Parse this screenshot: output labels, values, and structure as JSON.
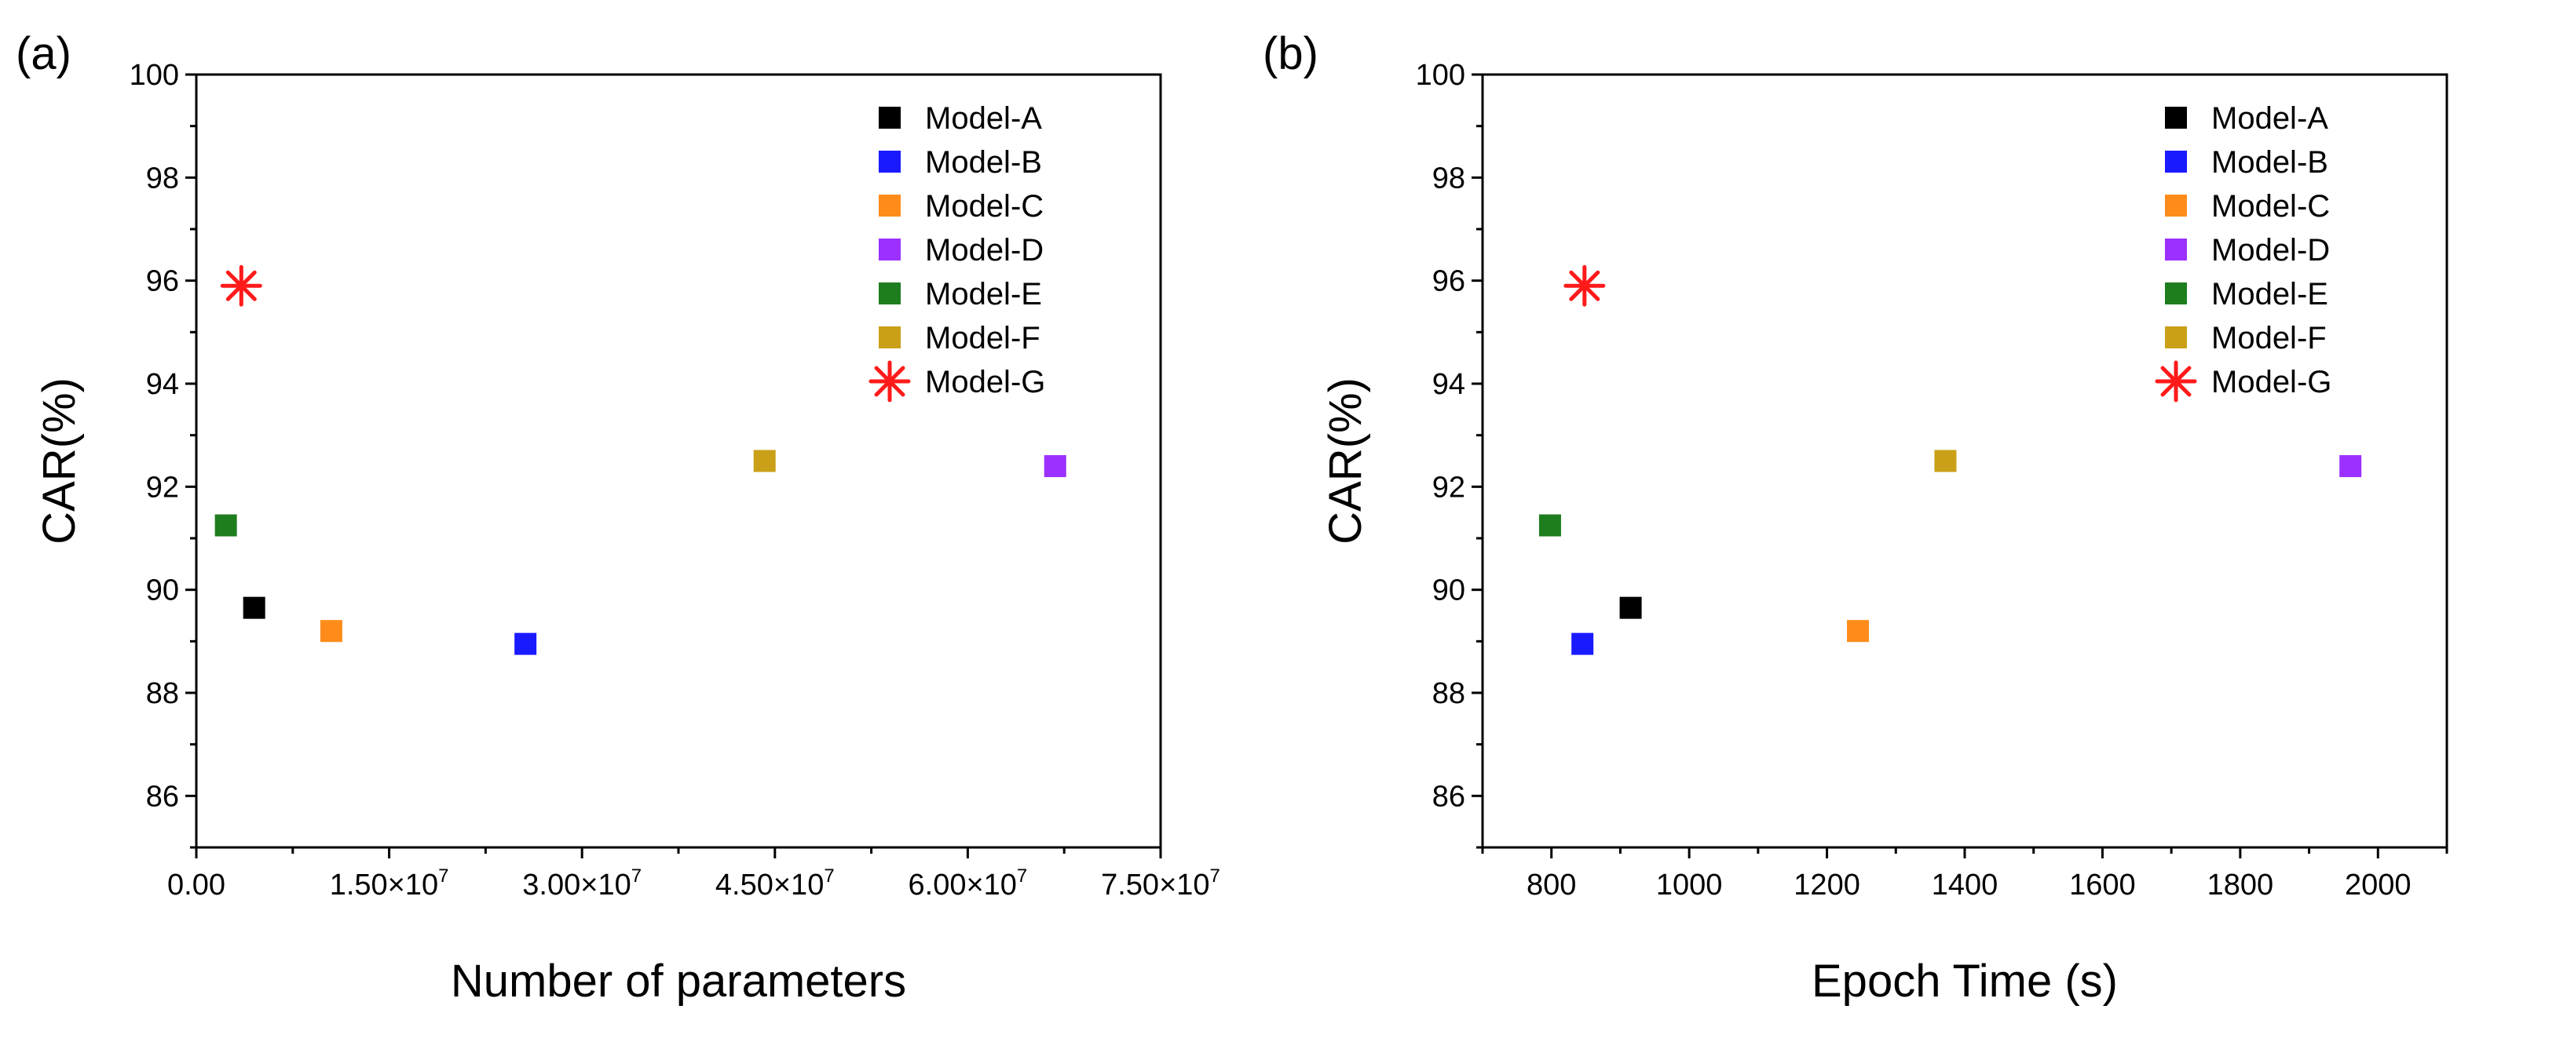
{
  "chart_data": [
    {
      "type": "scatter",
      "panel_label": "(a)",
      "title": "",
      "xlabel": "Number of parameters",
      "ylabel": "CAR(%)",
      "xlim": [
        0,
        75000000
      ],
      "ylim": [
        85,
        100
      ],
      "xticks": [
        {
          "value": 0,
          "label": "0.00"
        },
        {
          "value": 15000000,
          "label": "1.50×10",
          "exp": "7"
        },
        {
          "value": 30000000,
          "label": "3.00×10",
          "exp": "7"
        },
        {
          "value": 45000000,
          "label": "4.50×10",
          "exp": "7"
        },
        {
          "value": 60000000,
          "label": "6.00×10",
          "exp": "7"
        },
        {
          "value": 75000000,
          "label": "7.50×10",
          "exp": "7"
        }
      ],
      "yticks": [
        86,
        88,
        90,
        92,
        94,
        96,
        98,
        100
      ],
      "grid": false,
      "legend_position": "top-right",
      "series": [
        {
          "name": "Model-A",
          "color": "#000000",
          "marker": "square",
          "x": 4500000,
          "y": 89.65
        },
        {
          "name": "Model-B",
          "color": "#1a1aff",
          "marker": "square",
          "x": 25600000,
          "y": 88.95
        },
        {
          "name": "Model-C",
          "color": "#ff8c1a",
          "marker": "square",
          "x": 10500000,
          "y": 89.2
        },
        {
          "name": "Model-D",
          "color": "#9b30ff",
          "marker": "square",
          "x": 66800000,
          "y": 92.4
        },
        {
          "name": "Model-E",
          "color": "#1e7d1e",
          "marker": "square",
          "x": 2300000,
          "y": 91.25
        },
        {
          "name": "Model-F",
          "color": "#c9a018",
          "marker": "square",
          "x": 44200000,
          "y": 92.5
        },
        {
          "name": "Model-G",
          "color": "#ff1a1a",
          "marker": "star",
          "x": 3500000,
          "y": 95.9
        }
      ]
    },
    {
      "type": "scatter",
      "panel_label": "(b)",
      "title": "",
      "xlabel": "Epoch Time (s)",
      "ylabel": "CAR(%)",
      "xlim": [
        700,
        2100
      ],
      "ylim": [
        85,
        100
      ],
      "xticks": [
        {
          "value": 800,
          "label": "800"
        },
        {
          "value": 1000,
          "label": "1000"
        },
        {
          "value": 1200,
          "label": "1200"
        },
        {
          "value": 1400,
          "label": "1400"
        },
        {
          "value": 1600,
          "label": "1600"
        },
        {
          "value": 1800,
          "label": "1800"
        },
        {
          "value": 2000,
          "label": "2000"
        }
      ],
      "yticks": [
        86,
        88,
        90,
        92,
        94,
        96,
        98,
        100
      ],
      "grid": false,
      "legend_position": "top-right",
      "series": [
        {
          "name": "Model-A",
          "color": "#000000",
          "marker": "square",
          "x": 915,
          "y": 89.65
        },
        {
          "name": "Model-B",
          "color": "#1a1aff",
          "marker": "square",
          "x": 845,
          "y": 88.95
        },
        {
          "name": "Model-C",
          "color": "#ff8c1a",
          "marker": "square",
          "x": 1245,
          "y": 89.2
        },
        {
          "name": "Model-D",
          "color": "#9b30ff",
          "marker": "square",
          "x": 1960,
          "y": 92.4
        },
        {
          "name": "Model-E",
          "color": "#1e7d1e",
          "marker": "square",
          "x": 798,
          "y": 91.25
        },
        {
          "name": "Model-F",
          "color": "#c9a018",
          "marker": "square",
          "x": 1372,
          "y": 92.5
        },
        {
          "name": "Model-G",
          "color": "#ff1a1a",
          "marker": "star",
          "x": 848,
          "y": 95.9
        }
      ]
    }
  ]
}
